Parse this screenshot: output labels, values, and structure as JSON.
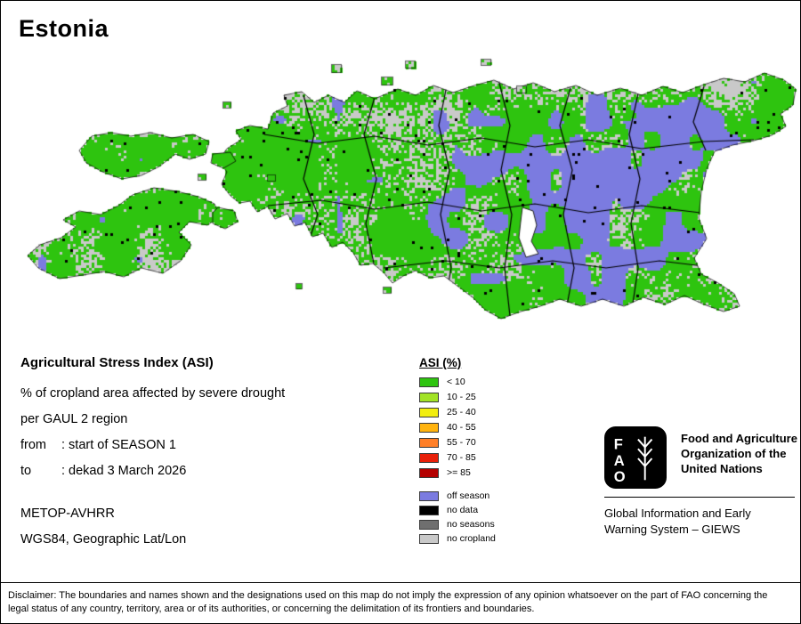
{
  "title": "Estonia",
  "info": {
    "heading": "Agricultural Stress Index (ASI)",
    "line1": "% of cropland area affected by severe drought",
    "line2": "per GAUL 2 region",
    "from_label": "from",
    "from_value": ": start of SEASON 1",
    "to_label": "to",
    "to_value": ": dekad 3 March 2026",
    "sensor": "METOP-AVHRR",
    "projection": "WGS84, Geographic Lat/Lon"
  },
  "legend": {
    "title": "ASI (%)",
    "classes": [
      {
        "label": "< 10",
        "color": "#2EC40F"
      },
      {
        "label": "10 - 25",
        "color": "#A2E326"
      },
      {
        "label": "25 - 40",
        "color": "#F2EE0F"
      },
      {
        "label": "40 - 55",
        "color": "#FFB30E"
      },
      {
        "label": "55 - 70",
        "color": "#FF7F27"
      },
      {
        "label": "70 - 85",
        "color": "#E8200A"
      },
      {
        "label": ">= 85",
        "color": "#B40000"
      }
    ],
    "extra": [
      {
        "label": "off season",
        "color": "#7B7BE0"
      },
      {
        "label": "no data",
        "color": "#000000"
      },
      {
        "label": "no seasons",
        "color": "#6F6F6F"
      },
      {
        "label": "no cropland",
        "color": "#C9C9C9"
      }
    ]
  },
  "fao": {
    "logo_letters": [
      "F",
      "A",
      "O"
    ],
    "org_name": "Food and Agriculture Organization of the United Nations",
    "giews": "Global Information and Early Warning System – GIEWS"
  },
  "disclaimer": "Disclaimer: The boundaries and names shown and the designations used on this map do not imply the expression of any opinion whatsoever on the part of FAO concerning the legal status of any country, territory, area or of its authorities, or concerning the delimitation of its frontiers and boundaries.",
  "map": {
    "colors": {
      "vegetation": "#2EC40F",
      "off_season": "#7B7BE0",
      "no_cropland": "#C9C9C9",
      "no_data": "#000000",
      "boundary": "#000000",
      "water": "#FFFFFF"
    }
  }
}
